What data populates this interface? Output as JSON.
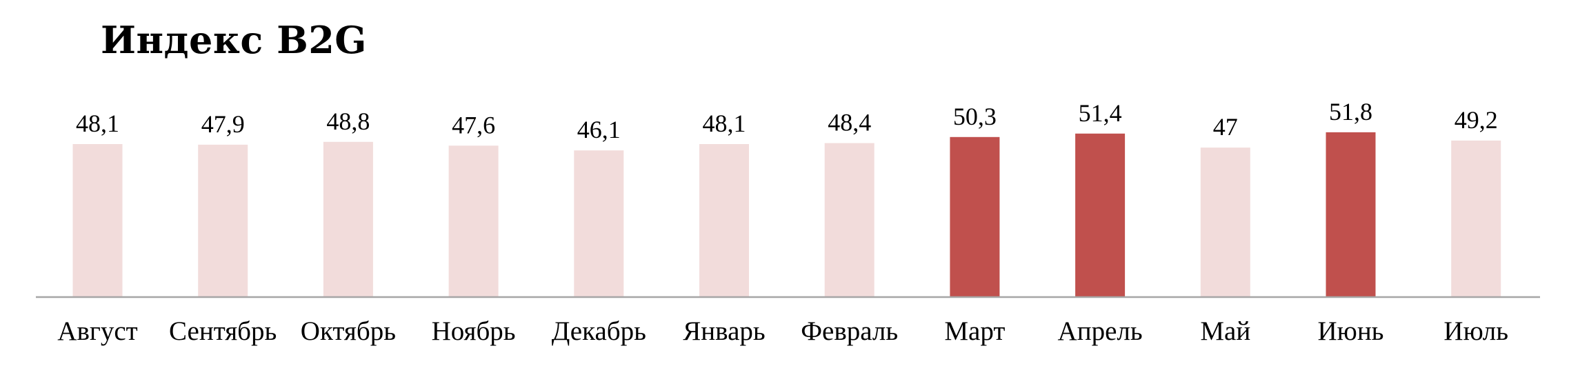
{
  "chart_data": {
    "type": "bar",
    "title": "Индекс B2G",
    "xlabel": "",
    "ylabel": "",
    "categories": [
      "Август",
      "Сентябрь",
      "Октябрь",
      "Ноябрь",
      "Декабрь",
      "Январь",
      "Февраль",
      "Март",
      "Апрель",
      "Май",
      "Июнь",
      "Июль"
    ],
    "values": [
      48.1,
      47.9,
      48.8,
      47.6,
      46.1,
      48.1,
      48.4,
      50.3,
      51.4,
      47,
      51.8,
      49.2
    ],
    "value_labels": [
      "48,1",
      "47,9",
      "48,8",
      "47,6",
      "46,1",
      "48,1",
      "48,4",
      "50,3",
      "51,4",
      "47",
      "51,8",
      "49,2"
    ],
    "highlighted": [
      false,
      false,
      false,
      false,
      false,
      false,
      false,
      true,
      true,
      false,
      true,
      false
    ],
    "ylim": [
      0,
      55
    ],
    "grid": false,
    "legend": "none",
    "colors": {
      "bar": "#f2dcdb",
      "bar_highlight": "#c0504d",
      "axis": "#a6a6a6",
      "text": "#000000"
    }
  }
}
